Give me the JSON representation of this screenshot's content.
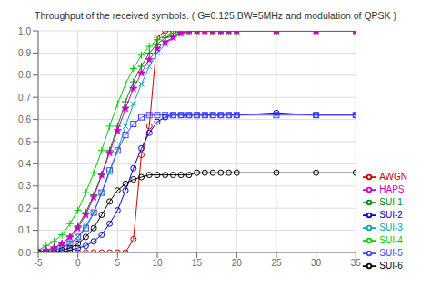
{
  "chart_data": {
    "type": "line",
    "title": "Throughput of the received symbols. ( G=0.125,BW=5MHz and modulation of QPSK )",
    "x": [
      -5,
      -4,
      -3,
      -2,
      -1,
      0,
      1,
      2,
      3,
      4,
      5,
      6,
      7,
      8,
      9,
      10,
      11,
      12,
      13,
      14,
      15,
      16,
      17,
      18,
      19,
      20,
      25,
      30,
      35
    ],
    "series": [
      {
        "name": "AWGN",
        "color": "#cc0000",
        "marker": "circle",
        "values": [
          0,
          0,
          0,
          0,
          0,
          0,
          0,
          0,
          0,
          0,
          0,
          0,
          0.06,
          0.44,
          0.57,
          0.97,
          1.0,
          1.0,
          1.0,
          1.0,
          1.0,
          1.0,
          1.0,
          1.0,
          1.0,
          1.0,
          1.0,
          1.0,
          1.0
        ]
      },
      {
        "name": "SUI-1",
        "color": "#008800",
        "marker": "plus",
        "values": [
          0,
          0.01,
          0.02,
          0.04,
          0.07,
          0.12,
          0.18,
          0.26,
          0.35,
          0.46,
          0.57,
          0.68,
          0.77,
          0.84,
          0.9,
          0.94,
          0.97,
          0.98,
          0.99,
          1.0,
          1.0,
          1.0,
          1.0,
          1.0,
          1.0,
          1.0,
          1.0,
          1.0,
          1.0
        ]
      },
      {
        "name": "SUI-2",
        "color": "#0000cc",
        "marker": "circle",
        "values": [
          0,
          0,
          0,
          0,
          0.01,
          0.02,
          0.03,
          0.05,
          0.08,
          0.13,
          0.19,
          0.28,
          0.38,
          0.47,
          0.54,
          0.59,
          0.61,
          0.62,
          0.62,
          0.62,
          0.62,
          0.62,
          0.62,
          0.62,
          0.62,
          0.62,
          0.63,
          0.62,
          0.62
        ]
      },
      {
        "name": "SUI-3",
        "color": "#00aaaa",
        "marker": "x",
        "values": [
          0,
          0,
          0.01,
          0.02,
          0.04,
          0.07,
          0.12,
          0.18,
          0.27,
          0.36,
          0.46,
          0.57,
          0.67,
          0.76,
          0.84,
          0.9,
          0.94,
          0.97,
          0.99,
          1.0,
          1.0,
          1.0,
          1.0,
          1.0,
          1.0,
          1.0,
          1.0,
          1.0,
          1.0
        ]
      },
      {
        "name": "SUI-4",
        "color": "#00cc00",
        "marker": "plus",
        "values": [
          0.01,
          0.03,
          0.05,
          0.08,
          0.13,
          0.19,
          0.27,
          0.36,
          0.46,
          0.57,
          0.67,
          0.76,
          0.83,
          0.89,
          0.93,
          0.96,
          0.98,
          0.99,
          1.0,
          1.0,
          1.0,
          1.0,
          1.0,
          1.0,
          1.0,
          1.0,
          1.0,
          1.0,
          1.0
        ]
      },
      {
        "name": "SUI-5",
        "color": "#4444ff",
        "marker": "square",
        "values": [
          0,
          0,
          0.01,
          0.02,
          0.04,
          0.07,
          0.11,
          0.18,
          0.27,
          0.37,
          0.46,
          0.53,
          0.58,
          0.61,
          0.62,
          0.62,
          0.62,
          0.62,
          0.62,
          0.62,
          0.62,
          0.62,
          0.62,
          0.62,
          0.62,
          0.62,
          0.62,
          0.62,
          0.62
        ]
      },
      {
        "name": "SUI-6",
        "color": "#000000",
        "marker": "circle",
        "values": [
          0,
          0,
          0,
          0.01,
          0.02,
          0.04,
          0.07,
          0.11,
          0.17,
          0.23,
          0.28,
          0.31,
          0.33,
          0.34,
          0.35,
          0.35,
          0.35,
          0.35,
          0.35,
          0.35,
          0.36,
          0.36,
          0.36,
          0.36,
          0.36,
          0.36,
          0.36,
          0.36,
          0.36
        ]
      },
      {
        "name": "HAPS",
        "color": "#cc00cc",
        "marker": "star",
        "values": [
          0,
          0.01,
          0.02,
          0.04,
          0.07,
          0.11,
          0.17,
          0.25,
          0.35,
          0.45,
          0.55,
          0.65,
          0.74,
          0.81,
          0.87,
          0.92,
          0.95,
          0.97,
          0.99,
          1.0,
          1.0,
          1.0,
          1.0,
          1.0,
          1.0,
          1.0,
          1.0,
          1.0,
          1.0
        ]
      }
    ],
    "xlim": [
      -5,
      35
    ],
    "ylim": [
      0,
      1.0
    ],
    "xticks": [
      -5,
      0,
      5,
      10,
      15,
      20,
      25,
      30,
      35
    ],
    "yticks": [
      {
        "value": 0,
        "label": "0.0"
      },
      0.1,
      0.2,
      0.3,
      0.4,
      0.5,
      0.6,
      0.7,
      0.8,
      0.9,
      {
        "value": 1,
        "label": "1.0"
      }
    ],
    "grid": true,
    "legend": "lower right"
  }
}
